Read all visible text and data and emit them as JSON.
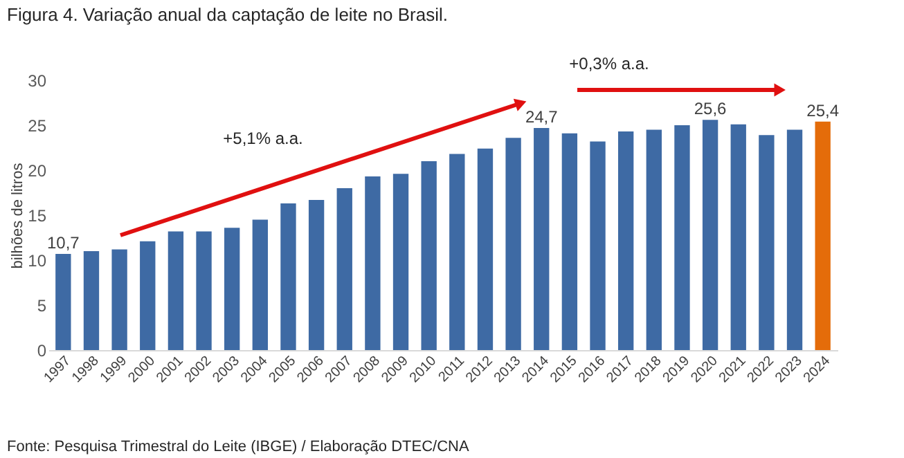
{
  "chart_data": {
    "type": "bar",
    "title": "Figura 4. Variação anual da captação de leite no Brasil.",
    "ylabel": "bilhões de litros",
    "categories": [
      "1997",
      "1998",
      "1999",
      "2000",
      "2001",
      "2002",
      "2003",
      "2004",
      "2005",
      "2006",
      "2007",
      "2008",
      "2009",
      "2010",
      "2011",
      "2012",
      "2013",
      "2014",
      "2015",
      "2016",
      "2017",
      "2018",
      "2019",
      "2020",
      "2021",
      "2022",
      "2023",
      "2024"
    ],
    "values": [
      10.7,
      11.0,
      11.2,
      12.1,
      13.2,
      13.2,
      13.6,
      14.5,
      16.3,
      16.7,
      18.0,
      19.3,
      19.6,
      21.0,
      21.8,
      22.4,
      23.6,
      24.7,
      24.1,
      23.2,
      24.3,
      24.5,
      25.0,
      25.6,
      25.1,
      23.9,
      24.5,
      25.4
    ],
    "colors": [
      "#3e6aa4",
      "#3e6aa4",
      "#3e6aa4",
      "#3e6aa4",
      "#3e6aa4",
      "#3e6aa4",
      "#3e6aa4",
      "#3e6aa4",
      "#3e6aa4",
      "#3e6aa4",
      "#3e6aa4",
      "#3e6aa4",
      "#3e6aa4",
      "#3e6aa4",
      "#3e6aa4",
      "#3e6aa4",
      "#3e6aa4",
      "#3e6aa4",
      "#3e6aa4",
      "#3e6aa4",
      "#3e6aa4",
      "#3e6aa4",
      "#3e6aa4",
      "#3e6aa4",
      "#3e6aa4",
      "#3e6aa4",
      "#3e6aa4",
      "#e46c0a"
    ],
    "value_labels": [
      "10,7",
      null,
      null,
      null,
      null,
      null,
      null,
      null,
      null,
      null,
      null,
      null,
      null,
      null,
      null,
      null,
      null,
      "24,7",
      null,
      null,
      null,
      null,
      null,
      "25,6",
      null,
      null,
      null,
      "25,4"
    ],
    "ylim": [
      0,
      30
    ],
    "yticks": [
      0,
      5,
      10,
      15,
      20,
      25,
      30
    ],
    "grid": false,
    "annotations": [
      "+5,1% a.a.",
      "+0,3% a.a.",
      "Fonte: Pesquisa Trimestral do Leite (IBGE) / Elaboração DTEC/CNA"
    ]
  }
}
